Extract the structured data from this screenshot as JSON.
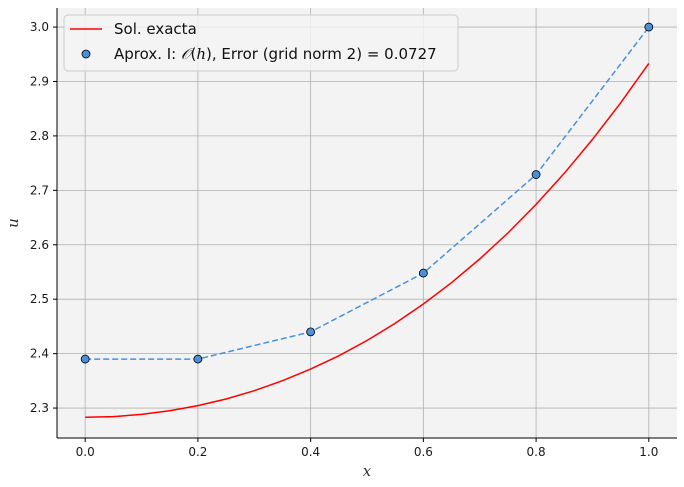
{
  "chart_data": {
    "type": "line",
    "xlabel": "x",
    "ylabel": "u",
    "xlim": [
      -0.05,
      1.05
    ],
    "ylim": [
      2.245,
      3.035
    ],
    "x_ticks": [
      0.0,
      0.2,
      0.4,
      0.6,
      0.8,
      1.0
    ],
    "x_tick_labels": [
      "0.0",
      "0.2",
      "0.4",
      "0.6",
      "0.8",
      "1.0"
    ],
    "y_ticks": [
      2.3,
      2.4,
      2.5,
      2.6,
      2.7,
      2.8,
      2.9,
      3.0
    ],
    "y_tick_labels": [
      "2.3",
      "2.4",
      "2.5",
      "2.6",
      "2.7",
      "2.8",
      "2.9",
      "3.0"
    ],
    "grid": true,
    "legend_position": "top-left",
    "series": [
      {
        "name": "Sol. exacta",
        "kind": "line",
        "color": "#ff0000",
        "x": [
          0.0,
          0.05,
          0.1,
          0.15,
          0.2,
          0.25,
          0.3,
          0.35,
          0.4,
          0.45,
          0.5,
          0.55,
          0.6,
          0.65,
          0.7,
          0.75,
          0.8,
          0.85,
          0.9,
          0.95,
          1.0
        ],
        "values": [
          2.283,
          2.2843,
          2.2883,
          2.2951,
          2.3045,
          2.3167,
          2.3319,
          2.3502,
          2.3715,
          2.3961,
          2.4241,
          2.4557,
          2.4912,
          2.5304,
          2.5739,
          2.6217,
          2.6742,
          2.7314,
          2.7935,
          2.8607,
          2.9333
        ]
      },
      {
        "name": "Aprox. I: 𝒪(h), Error (grid norm 2) = 0.0727",
        "kind": "scatter-dashed",
        "color": "#4a90d9",
        "marker_edge": "#000000",
        "x": [
          0.0,
          0.2,
          0.4,
          0.6,
          0.8,
          1.0
        ],
        "values": [
          2.39,
          2.39,
          2.44,
          2.548,
          2.729,
          3.0
        ]
      }
    ]
  },
  "legend": {
    "item_1": "Sol. exacta",
    "item_2_prefix": "Aprox. I: ",
    "item_2_math_O": "𝒪",
    "item_2_open": "(",
    "item_2_math_h": "h",
    "item_2_suffix": "), Error (grid norm 2) = 0.0727"
  }
}
